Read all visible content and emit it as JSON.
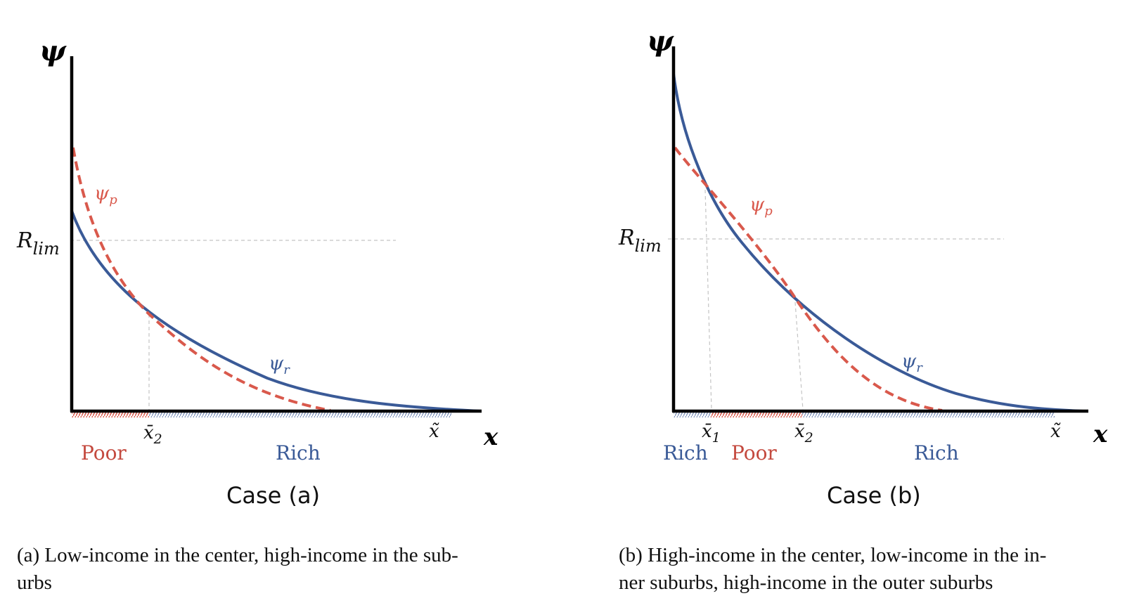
{
  "colors": {
    "rich": "#3a5a97",
    "poor": "#d9594c",
    "axis": "#000000",
    "guide": "#bbbbbb"
  },
  "panel_a": {
    "y_axis_symbol": "ψ",
    "x_axis_symbol": "x",
    "r_lim_main": "R",
    "r_lim_sub": "lim",
    "curve_poor_label": {
      "main": "ψ",
      "sub": "p"
    },
    "curve_rich_label": {
      "main": "ψ",
      "sub": "r"
    },
    "tick_x2": {
      "main": "x̄",
      "sub": "2"
    },
    "tick_xtilde": "x̃",
    "region_poor": "Poor",
    "region_rich": "Rich",
    "case_label": "Case (a)"
  },
  "panel_b": {
    "y_axis_symbol": "ψ",
    "x_axis_symbol": "x",
    "r_lim_main": "R",
    "r_lim_sub": "lim",
    "curve_poor_label": {
      "main": "ψ",
      "sub": "p"
    },
    "curve_rich_label": {
      "main": "ψ",
      "sub": "r"
    },
    "tick_x1": {
      "main": "x̄",
      "sub": "1"
    },
    "tick_x2": {
      "main": "x̄",
      "sub": "2"
    },
    "tick_xtilde": "x̃",
    "region_rich_inner": "Rich",
    "region_poor": "Poor",
    "region_rich_outer": "Rich",
    "case_label": "Case (b)"
  },
  "captions": {
    "a_line1": "(a) Low-income in the center, high-income in the sub-",
    "a_line2": "urbs",
    "b_line1": "(b) High-income in the center, low-income in the in-",
    "b_line2": "ner suburbs, high-income in the outer suburbs"
  }
}
